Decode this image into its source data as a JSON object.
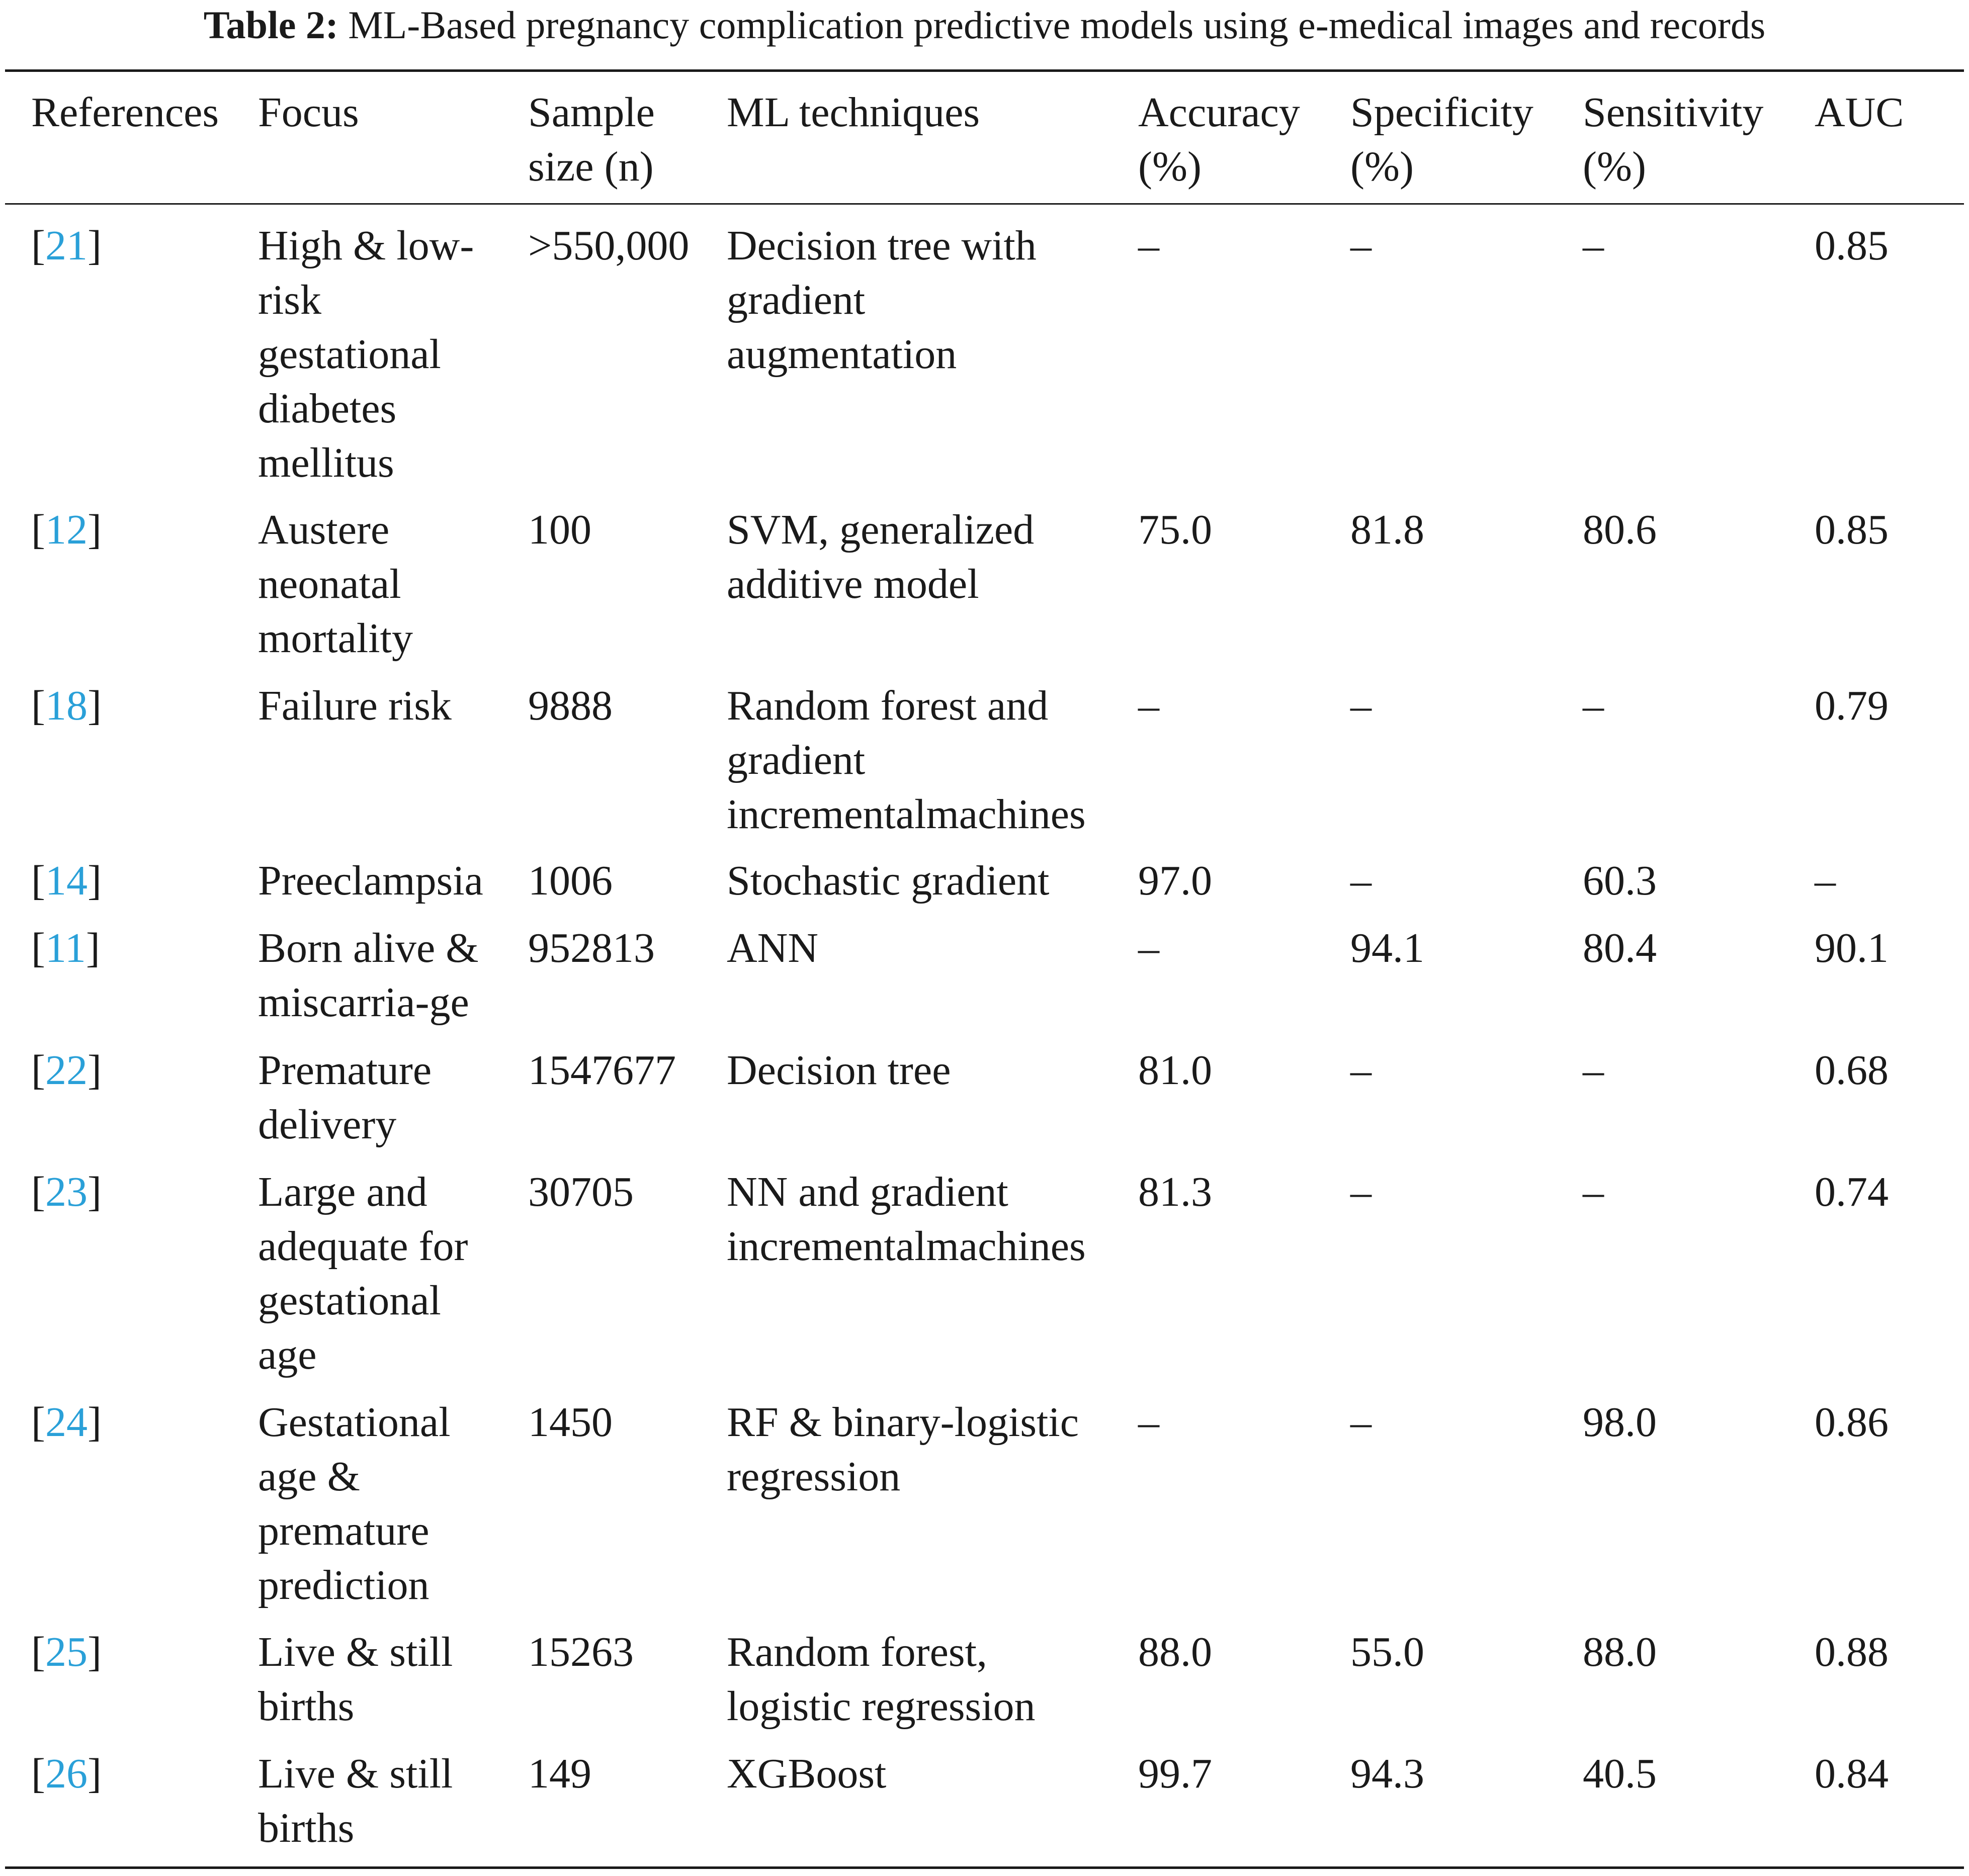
{
  "caption": {
    "label": "Table 2:",
    "text": "ML-Based pregnancy complication predictive models using e-medical images and records"
  },
  "headers": [
    "References",
    "Focus",
    "Sample\nsize (n)",
    "ML techniques",
    "Accuracy\n(%)",
    "Specificity\n(%)",
    "Sensitivity\n(%)",
    "AUC"
  ],
  "rows": [
    {
      "ref": "21",
      "focus": "High & low-\nrisk\ngestational\ndiabetes\nmellitus",
      "sample": ">550,000",
      "technique": "Decision tree with\ngradient\naugmentation",
      "accuracy": "–",
      "specificity": "–",
      "sensitivity": "–",
      "auc": "0.85"
    },
    {
      "ref": "12",
      "focus": "Austere\nneonatal\nmortality",
      "sample": "100",
      "technique": "SVM, generalized\nadditive model",
      "accuracy": "75.0",
      "specificity": "81.8",
      "sensitivity": "80.6",
      "auc": "0.85"
    },
    {
      "ref": "18",
      "focus": "Failure risk",
      "sample": "9888",
      "technique": "Random forest and\ngradient\nincrementalmachines",
      "accuracy": "–",
      "specificity": "–",
      "sensitivity": "–",
      "auc": "0.79"
    },
    {
      "ref": "14",
      "focus": "Preeclampsia",
      "sample": "1006",
      "technique": "Stochastic gradient",
      "accuracy": "97.0",
      "specificity": "–",
      "sensitivity": "60.3",
      "auc": "–"
    },
    {
      "ref": "11",
      "focus": "Born alive &\nmiscarria-ge",
      "sample": "952813",
      "technique": "ANN",
      "accuracy": "–",
      "specificity": "94.1",
      "sensitivity": "80.4",
      "auc": "90.1"
    },
    {
      "ref": "22",
      "focus": "Premature\ndelivery",
      "sample": "1547677",
      "technique": "Decision tree",
      "accuracy": "81.0",
      "specificity": "–",
      "sensitivity": "–",
      "auc": "0.68"
    },
    {
      "ref": "23",
      "focus": "Large and\nadequate for\ngestational\nage",
      "sample": "30705",
      "technique": "NN and gradient\nincrementalmachines",
      "accuracy": "81.3",
      "specificity": "–",
      "sensitivity": "–",
      "auc": "0.74"
    },
    {
      "ref": "24",
      "focus": "Gestational\nage &\npremature\nprediction",
      "sample": "1450",
      "technique": "RF & binary-logistic\nregression",
      "accuracy": "–",
      "specificity": "–",
      "sensitivity": "98.0",
      "auc": "0.86"
    },
    {
      "ref": "25",
      "focus": "Live & still\nbirths",
      "sample": "15263",
      "technique": "Random forest,\nlogistic regression",
      "accuracy": "88.0",
      "specificity": "55.0",
      "sensitivity": "88.0",
      "auc": "0.88"
    },
    {
      "ref": "26",
      "focus": "Live & still\nbirths",
      "sample": "149",
      "technique": "XGBoost",
      "accuracy": "99.7",
      "specificity": "94.3",
      "sensitivity": "40.5",
      "auc": "0.84"
    }
  ],
  "colors": {
    "text": "#1a1a1a",
    "reference_link": "#2aa0d8"
  }
}
